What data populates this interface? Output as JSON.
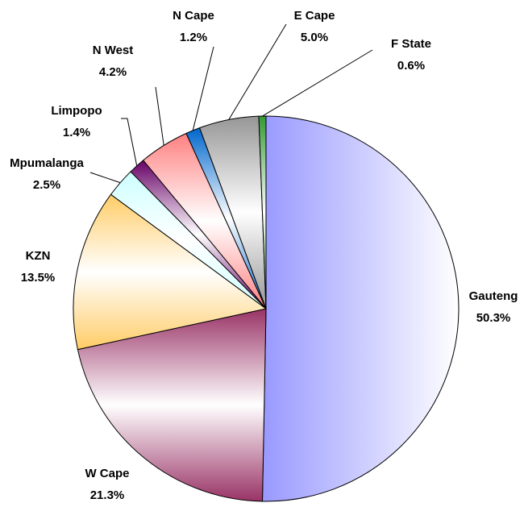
{
  "chart_data": {
    "type": "pie",
    "categories": [
      "Gauteng",
      "W Cape",
      "KZN",
      "Mpumalanga",
      "Limpopo",
      "N West",
      "N Cape",
      "E Cape",
      "F State"
    ],
    "values": [
      50.3,
      21.3,
      13.5,
      2.5,
      1.4,
      4.2,
      1.2,
      5.0,
      0.6
    ],
    "value_labels": [
      "50.3%",
      "21.3%",
      "13.5%",
      "2.5%",
      "1.4%",
      "4.2%",
      "1.2%",
      "5.0%",
      "0.6%"
    ],
    "colors": [
      "#9999ff",
      "#993366",
      "#ffcc66",
      "#ccffff",
      "#660066",
      "#ff8080",
      "#0066cc",
      "#969696",
      "#339933"
    ]
  }
}
